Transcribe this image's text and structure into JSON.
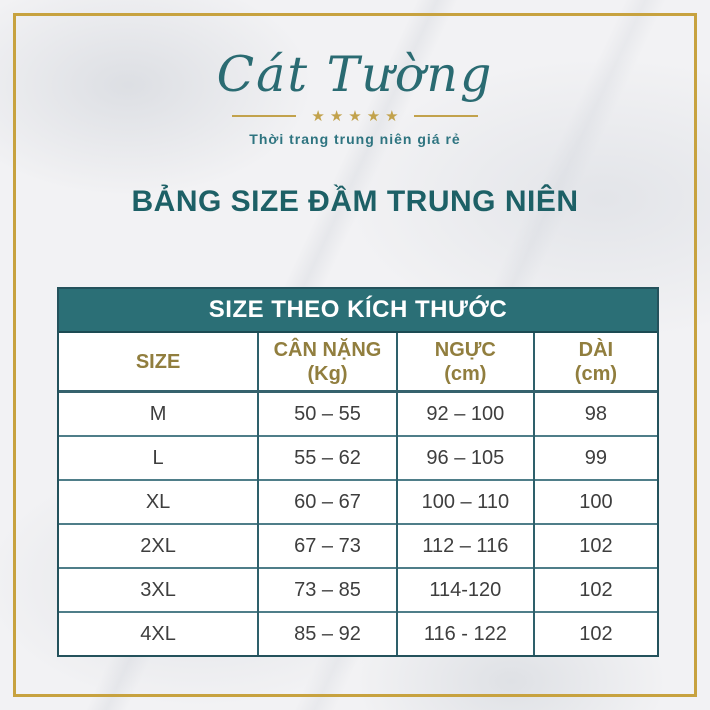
{
  "brand": {
    "logo_text": "Cát Tường",
    "stars": "★★★★★",
    "tagline": "Thời trang trung niên giá rẻ"
  },
  "page": {
    "title": "BẢNG SIZE ĐẦM TRUNG NIÊN"
  },
  "size_table": {
    "title": "SIZE THEO KÍCH THƯỚC",
    "columns": [
      {
        "label": "SIZE",
        "unit": ""
      },
      {
        "label": "CÂN NẶNG",
        "unit": "(Kg)"
      },
      {
        "label": "NGỰC",
        "unit": "(cm)"
      },
      {
        "label": "DÀI",
        "unit": "(cm)"
      }
    ],
    "rows": [
      [
        "M",
        "50 – 55",
        "92 – 100",
        "98"
      ],
      [
        "L",
        "55 – 62",
        "96 – 105",
        "99"
      ],
      [
        "XL",
        "60 – 67",
        "100 – 110",
        "100"
      ],
      [
        "2XL",
        "67 – 73",
        "112 – 116",
        "102"
      ],
      [
        "3XL",
        "73 – 85",
        "114-120",
        "102"
      ],
      [
        "4XL",
        "85 – 92",
        "116 - 122",
        "102"
      ]
    ]
  },
  "colors": {
    "brand_teal": "#2b6f76",
    "title_teal": "#1d6066",
    "gold_accent": "#c7a23f",
    "gold_text": "#917e3e",
    "cell_text": "#3e3e3e"
  }
}
